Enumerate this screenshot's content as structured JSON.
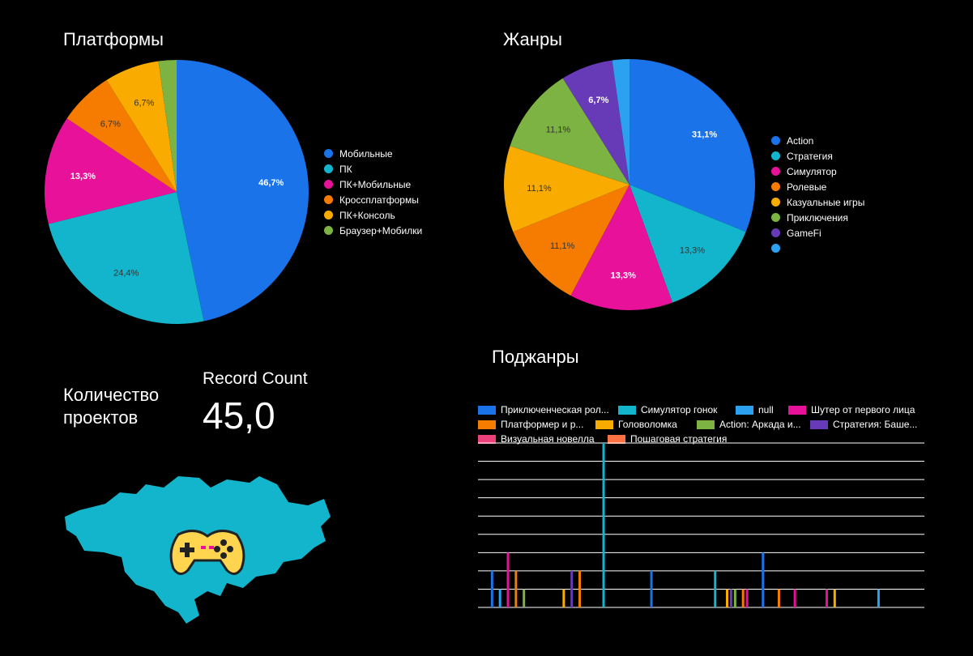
{
  "platforms": {
    "title": "Платформы",
    "chart_data": {
      "type": "pie",
      "labels": [
        "Мобильные",
        "ПК",
        "ПК+Мобильные",
        "Кроссплатформы",
        "ПК+Консоль",
        "Браузер+Мобилки"
      ],
      "values": [
        46.7,
        24.4,
        13.3,
        6.7,
        6.7,
        2.2
      ],
      "data_labels": [
        "46,7%",
        "24,4%",
        "13,3%",
        "6,7%",
        "6,7%",
        ""
      ],
      "colors": [
        "#1a73e8",
        "#12b5cb",
        "#e8119a",
        "#f57c00",
        "#f9ab00",
        "#7cb342"
      ],
      "label_colors": [
        "#ffffff",
        "#333333",
        "#ffffff",
        "#333333",
        "#333333",
        "#333333"
      ],
      "legend_position": "right"
    }
  },
  "genres": {
    "title": "Жанры",
    "chart_data": {
      "type": "pie",
      "labels": [
        "Action",
        "Стратегия",
        "Симулятор",
        "Ролевые",
        "Казуальные игры",
        "Приключения",
        "GameFi",
        ""
      ],
      "values": [
        31.1,
        13.3,
        13.3,
        11.1,
        11.1,
        11.1,
        6.7,
        2.2
      ],
      "data_labels": [
        "31,1%",
        "13,3%",
        "13,3%",
        "11,1%",
        "11,1%",
        "11,1%",
        "6,7%",
        ""
      ],
      "colors": [
        "#1a73e8",
        "#12b5cb",
        "#e8119a",
        "#f57c00",
        "#f9ab00",
        "#7cb342",
        "#673ab7",
        "#2ba1f0"
      ],
      "label_colors": [
        "#ffffff",
        "#333333",
        "#ffffff",
        "#333333",
        "#333333",
        "#333333",
        "#ffffff",
        "#ffffff"
      ],
      "legend_position": "right"
    }
  },
  "metric": {
    "label": "Количество проектов",
    "sublabel": "Record Count",
    "value": "45,0"
  },
  "subgenres": {
    "title": "Поджанры",
    "chart_data": {
      "type": "bar",
      "series": [
        {
          "name": "Приключенческая рол...",
          "color": "#1a73e8"
        },
        {
          "name": "Симулятор гонок",
          "color": "#12b5cb"
        },
        {
          "name": "null",
          "color": "#2ba1f0"
        },
        {
          "name": "Шутер от первого лица",
          "color": "#e8119a"
        },
        {
          "name": "Платформер и р...",
          "color": "#f57c00"
        },
        {
          "name": "Головоломка",
          "color": "#f9ab00"
        },
        {
          "name": "Action: Аркада и...",
          "color": "#7cb342"
        },
        {
          "name": "Стратегия: Баше...",
          "color": "#673ab7"
        },
        {
          "name": "Визуальная новелла",
          "color": "#ec407a"
        },
        {
          "name": "Пошаговая стратегия",
          "color": "#ff7043"
        }
      ],
      "bars": [
        {
          "x": 1,
          "series": 0,
          "value": 2
        },
        {
          "x": 2,
          "series": 2,
          "value": 1
        },
        {
          "x": 3,
          "series": 3,
          "value": 3
        },
        {
          "x": 4,
          "series": 4,
          "value": 2
        },
        {
          "x": 5,
          "series": 6,
          "value": 1
        },
        {
          "x": 10,
          "series": 5,
          "value": 1
        },
        {
          "x": 11,
          "series": 7,
          "value": 2
        },
        {
          "x": 12,
          "series": 4,
          "value": 2
        },
        {
          "x": 15,
          "series": 1,
          "value": 9
        },
        {
          "x": 21,
          "series": 0,
          "value": 2
        },
        {
          "x": 29,
          "series": 1,
          "value": 2
        },
        {
          "x": 30.5,
          "series": 5,
          "value": 1
        },
        {
          "x": 31,
          "series": 7,
          "value": 1
        },
        {
          "x": 31.5,
          "series": 6,
          "value": 1
        },
        {
          "x": 32.5,
          "series": 4,
          "value": 1
        },
        {
          "x": 33,
          "series": 3,
          "value": 1
        },
        {
          "x": 35,
          "series": 0,
          "value": 3
        },
        {
          "x": 37,
          "series": 4,
          "value": 1
        },
        {
          "x": 39,
          "series": 3,
          "value": 1
        },
        {
          "x": 43,
          "series": 3,
          "value": 1
        },
        {
          "x": 44,
          "series": 5,
          "value": 1
        },
        {
          "x": 49.5,
          "series": 2,
          "value": 1
        }
      ],
      "ylim": [
        0,
        9
      ],
      "grid": true,
      "legend_position": "top"
    }
  }
}
